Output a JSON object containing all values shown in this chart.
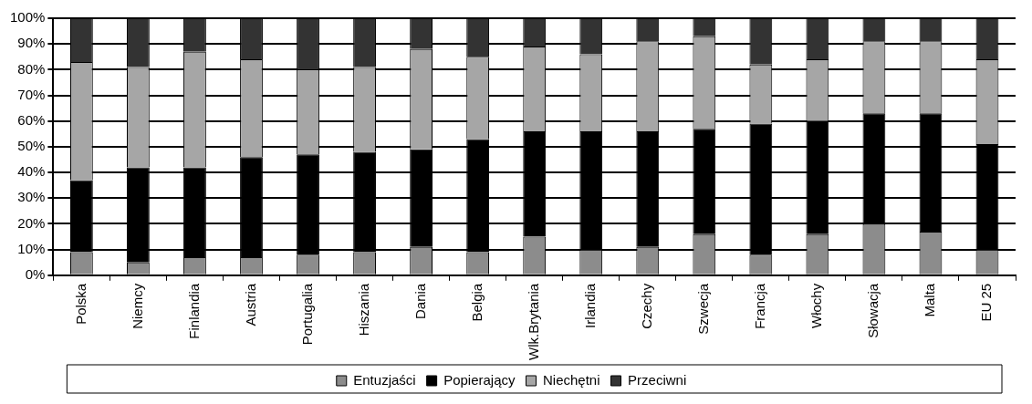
{
  "chart_data": {
    "type": "bar",
    "stacked": true,
    "categories": [
      "Polska",
      "Niemcy",
      "Finlandia",
      "Austria",
      "Portugalia",
      "Hiszania",
      "Dania",
      "Belgia",
      "Wlk.Brytania",
      "Irlandia",
      "Czechy",
      "Szwecja",
      "Francja",
      "Włochy",
      "Słowacja",
      "Malta",
      "EU 25"
    ],
    "series": [
      {
        "name": "Entuzjaści",
        "color": "#8c8c8c",
        "values": [
          9,
          5,
          7,
          7,
          8,
          9,
          11,
          9,
          15,
          10,
          11,
          16,
          8,
          16,
          20,
          17,
          10
        ]
      },
      {
        "name": "Popierający",
        "color": "#000000",
        "values": [
          28,
          37,
          35,
          39,
          39,
          39,
          38,
          44,
          41,
          46,
          45,
          41,
          51,
          44,
          43,
          46,
          41
        ]
      },
      {
        "name": "Niechętni",
        "color": "#a6a6a6",
        "values": [
          46,
          39,
          45,
          38,
          33,
          33,
          39,
          32,
          33,
          30,
          35,
          36,
          23,
          24,
          28,
          28,
          33
        ]
      },
      {
        "name": "Przeciwni",
        "color": "#333333",
        "values": [
          17,
          19,
          13,
          16,
          20,
          19,
          12,
          15,
          11,
          14,
          9,
          7,
          18,
          16,
          9,
          9,
          16
        ]
      }
    ],
    "ylim": [
      0,
      100
    ],
    "yticks": [
      {
        "value": 0,
        "label": "0%"
      },
      {
        "value": 10,
        "label": "10%"
      },
      {
        "value": 20,
        "label": "20%"
      },
      {
        "value": 30,
        "label": "30%"
      },
      {
        "value": 40,
        "label": "40%"
      },
      {
        "value": 50,
        "label": "50%"
      },
      {
        "value": 60,
        "label": "60%"
      },
      {
        "value": 70,
        "label": "70%"
      },
      {
        "value": 80,
        "label": "80%"
      },
      {
        "value": 90,
        "label": "90%"
      },
      {
        "value": 100,
        "label": "100%"
      }
    ],
    "grid": "y",
    "legend": "bottom"
  }
}
